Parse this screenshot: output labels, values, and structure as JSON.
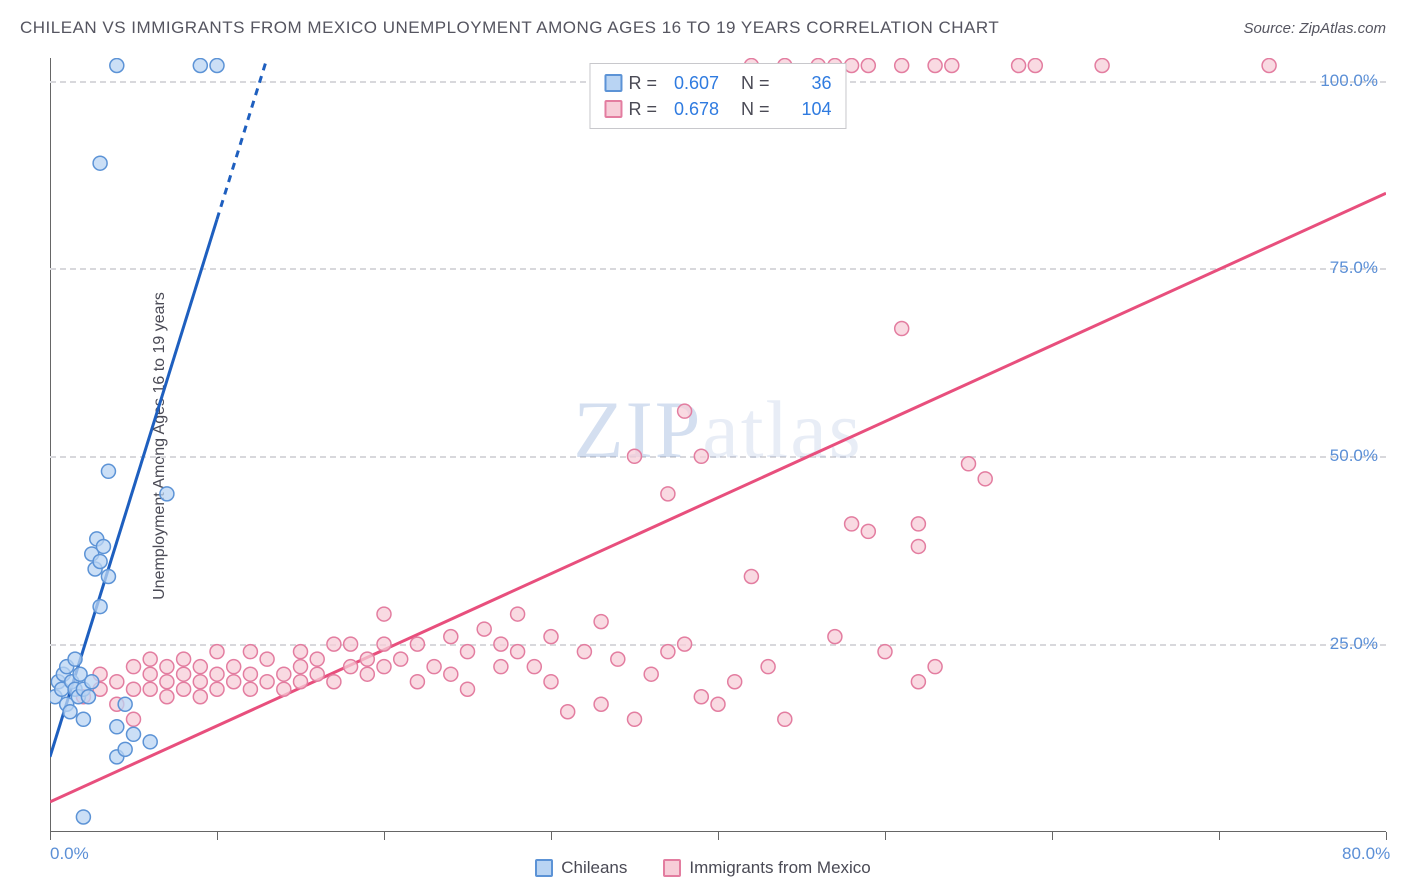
{
  "title": "CHILEAN VS IMMIGRANTS FROM MEXICO UNEMPLOYMENT AMONG AGES 16 TO 19 YEARS CORRELATION CHART",
  "source": "Source: ZipAtlas.com",
  "y_axis_label": "Unemployment Among Ages 16 to 19 years",
  "watermark_a": "ZIP",
  "watermark_b": "atlas",
  "chart": {
    "type": "scatter",
    "background_color": "#ffffff",
    "grid_color": "#d8d8dc",
    "text_color": "#4a4a55",
    "tick_label_color": "#5b8fd6",
    "xlim": [
      0,
      80
    ],
    "ylim": [
      0,
      103
    ],
    "x_ticks": [
      0,
      10,
      20,
      30,
      40,
      50,
      60,
      70,
      80
    ],
    "x_tick_labels": {
      "0": "0.0%",
      "80": "80.0%"
    },
    "y_grid": [
      25,
      50,
      75,
      100
    ],
    "y_tick_labels": {
      "25": "25.0%",
      "50": "50.0%",
      "75": "75.0%",
      "100": "100.0%"
    },
    "marker_radius": 7,
    "marker_stroke_width": 1.5,
    "line_width": 3,
    "series": [
      {
        "name": "Chileans",
        "fill": "#b9d4f3",
        "stroke": "#5c93d6",
        "line_color": "#1e5fbf",
        "R": "0.607",
        "N": "36",
        "trend": {
          "x1": 0,
          "y1": 10,
          "x2": 13,
          "y2": 103
        },
        "trend_dash_from_x": 10,
        "points": [
          [
            0.3,
            18
          ],
          [
            0.5,
            20
          ],
          [
            0.7,
            19
          ],
          [
            0.8,
            21
          ],
          [
            1,
            17
          ],
          [
            1,
            22
          ],
          [
            1.2,
            16
          ],
          [
            1.3,
            20
          ],
          [
            1.5,
            19
          ],
          [
            1.5,
            23
          ],
          [
            1.7,
            18
          ],
          [
            1.8,
            21
          ],
          [
            2,
            15
          ],
          [
            2,
            19
          ],
          [
            2.3,
            18
          ],
          [
            2.5,
            20
          ],
          [
            2.5,
            37
          ],
          [
            2.7,
            35
          ],
          [
            2.8,
            39
          ],
          [
            3,
            36
          ],
          [
            3,
            30
          ],
          [
            3.2,
            38
          ],
          [
            3.5,
            34
          ],
          [
            3.5,
            48
          ],
          [
            4,
            10
          ],
          [
            4,
            14
          ],
          [
            4.5,
            11
          ],
          [
            4.5,
            17
          ],
          [
            5,
            13
          ],
          [
            6,
            12
          ],
          [
            7,
            45
          ],
          [
            3,
            89
          ],
          [
            4,
            102
          ],
          [
            9,
            102
          ],
          [
            10,
            102
          ],
          [
            2,
            2
          ]
        ]
      },
      {
        "name": "Immigrants from Mexico",
        "fill": "#f7cdd8",
        "stroke": "#e37da0",
        "line_color": "#e84f7d",
        "R": "0.678",
        "N": "104",
        "trend": {
          "x1": 0,
          "y1": 4,
          "x2": 80,
          "y2": 85
        },
        "points": [
          [
            2,
            18
          ],
          [
            3,
            19
          ],
          [
            3,
            21
          ],
          [
            4,
            20
          ],
          [
            4,
            17
          ],
          [
            5,
            19
          ],
          [
            5,
            22
          ],
          [
            5,
            15
          ],
          [
            6,
            21
          ],
          [
            6,
            19
          ],
          [
            6,
            23
          ],
          [
            7,
            20
          ],
          [
            7,
            18
          ],
          [
            7,
            22
          ],
          [
            8,
            21
          ],
          [
            8,
            19
          ],
          [
            8,
            23
          ],
          [
            9,
            20
          ],
          [
            9,
            18
          ],
          [
            9,
            22
          ],
          [
            10,
            21
          ],
          [
            10,
            19
          ],
          [
            10,
            24
          ],
          [
            11,
            20
          ],
          [
            11,
            22
          ],
          [
            12,
            21
          ],
          [
            12,
            19
          ],
          [
            12,
            24
          ],
          [
            13,
            20
          ],
          [
            13,
            23
          ],
          [
            14,
            21
          ],
          [
            14,
            19
          ],
          [
            15,
            22
          ],
          [
            15,
            24
          ],
          [
            15,
            20
          ],
          [
            16,
            23
          ],
          [
            16,
            21
          ],
          [
            17,
            25
          ],
          [
            17,
            20
          ],
          [
            18,
            22
          ],
          [
            18,
            25
          ],
          [
            19,
            21
          ],
          [
            19,
            23
          ],
          [
            20,
            25
          ],
          [
            20,
            22
          ],
          [
            20,
            29
          ],
          [
            21,
            23
          ],
          [
            22,
            25
          ],
          [
            22,
            20
          ],
          [
            23,
            22
          ],
          [
            24,
            26
          ],
          [
            24,
            21
          ],
          [
            25,
            24
          ],
          [
            25,
            19
          ],
          [
            26,
            27
          ],
          [
            27,
            25
          ],
          [
            27,
            22
          ],
          [
            28,
            29
          ],
          [
            28,
            24
          ],
          [
            29,
            22
          ],
          [
            30,
            26
          ],
          [
            30,
            20
          ],
          [
            31,
            16
          ],
          [
            32,
            24
          ],
          [
            33,
            17
          ],
          [
            33,
            28
          ],
          [
            34,
            23
          ],
          [
            35,
            15
          ],
          [
            35,
            50
          ],
          [
            36,
            21
          ],
          [
            37,
            24
          ],
          [
            37,
            45
          ],
          [
            38,
            25
          ],
          [
            38,
            56
          ],
          [
            39,
            50
          ],
          [
            39,
            18
          ],
          [
            40,
            17
          ],
          [
            41,
            20
          ],
          [
            42,
            34
          ],
          [
            43,
            22
          ],
          [
            44,
            15
          ],
          [
            47,
            26
          ],
          [
            48,
            41
          ],
          [
            49,
            40
          ],
          [
            50,
            24
          ],
          [
            51,
            67
          ],
          [
            52,
            38
          ],
          [
            52,
            41
          ],
          [
            53,
            22
          ],
          [
            55,
            49
          ],
          [
            56,
            47
          ],
          [
            42,
            102
          ],
          [
            44,
            102
          ],
          [
            46,
            102
          ],
          [
            47,
            102
          ],
          [
            48,
            102
          ],
          [
            49,
            102
          ],
          [
            51,
            102
          ],
          [
            53,
            102
          ],
          [
            54,
            102
          ],
          [
            58,
            102
          ],
          [
            59,
            102
          ],
          [
            63,
            102
          ],
          [
            73,
            102
          ],
          [
            52,
            20
          ]
        ]
      }
    ]
  },
  "legend": {
    "series1_label": "Chileans",
    "series2_label": "Immigrants from Mexico"
  },
  "stats_labels": {
    "R": "R =",
    "N": "N ="
  }
}
